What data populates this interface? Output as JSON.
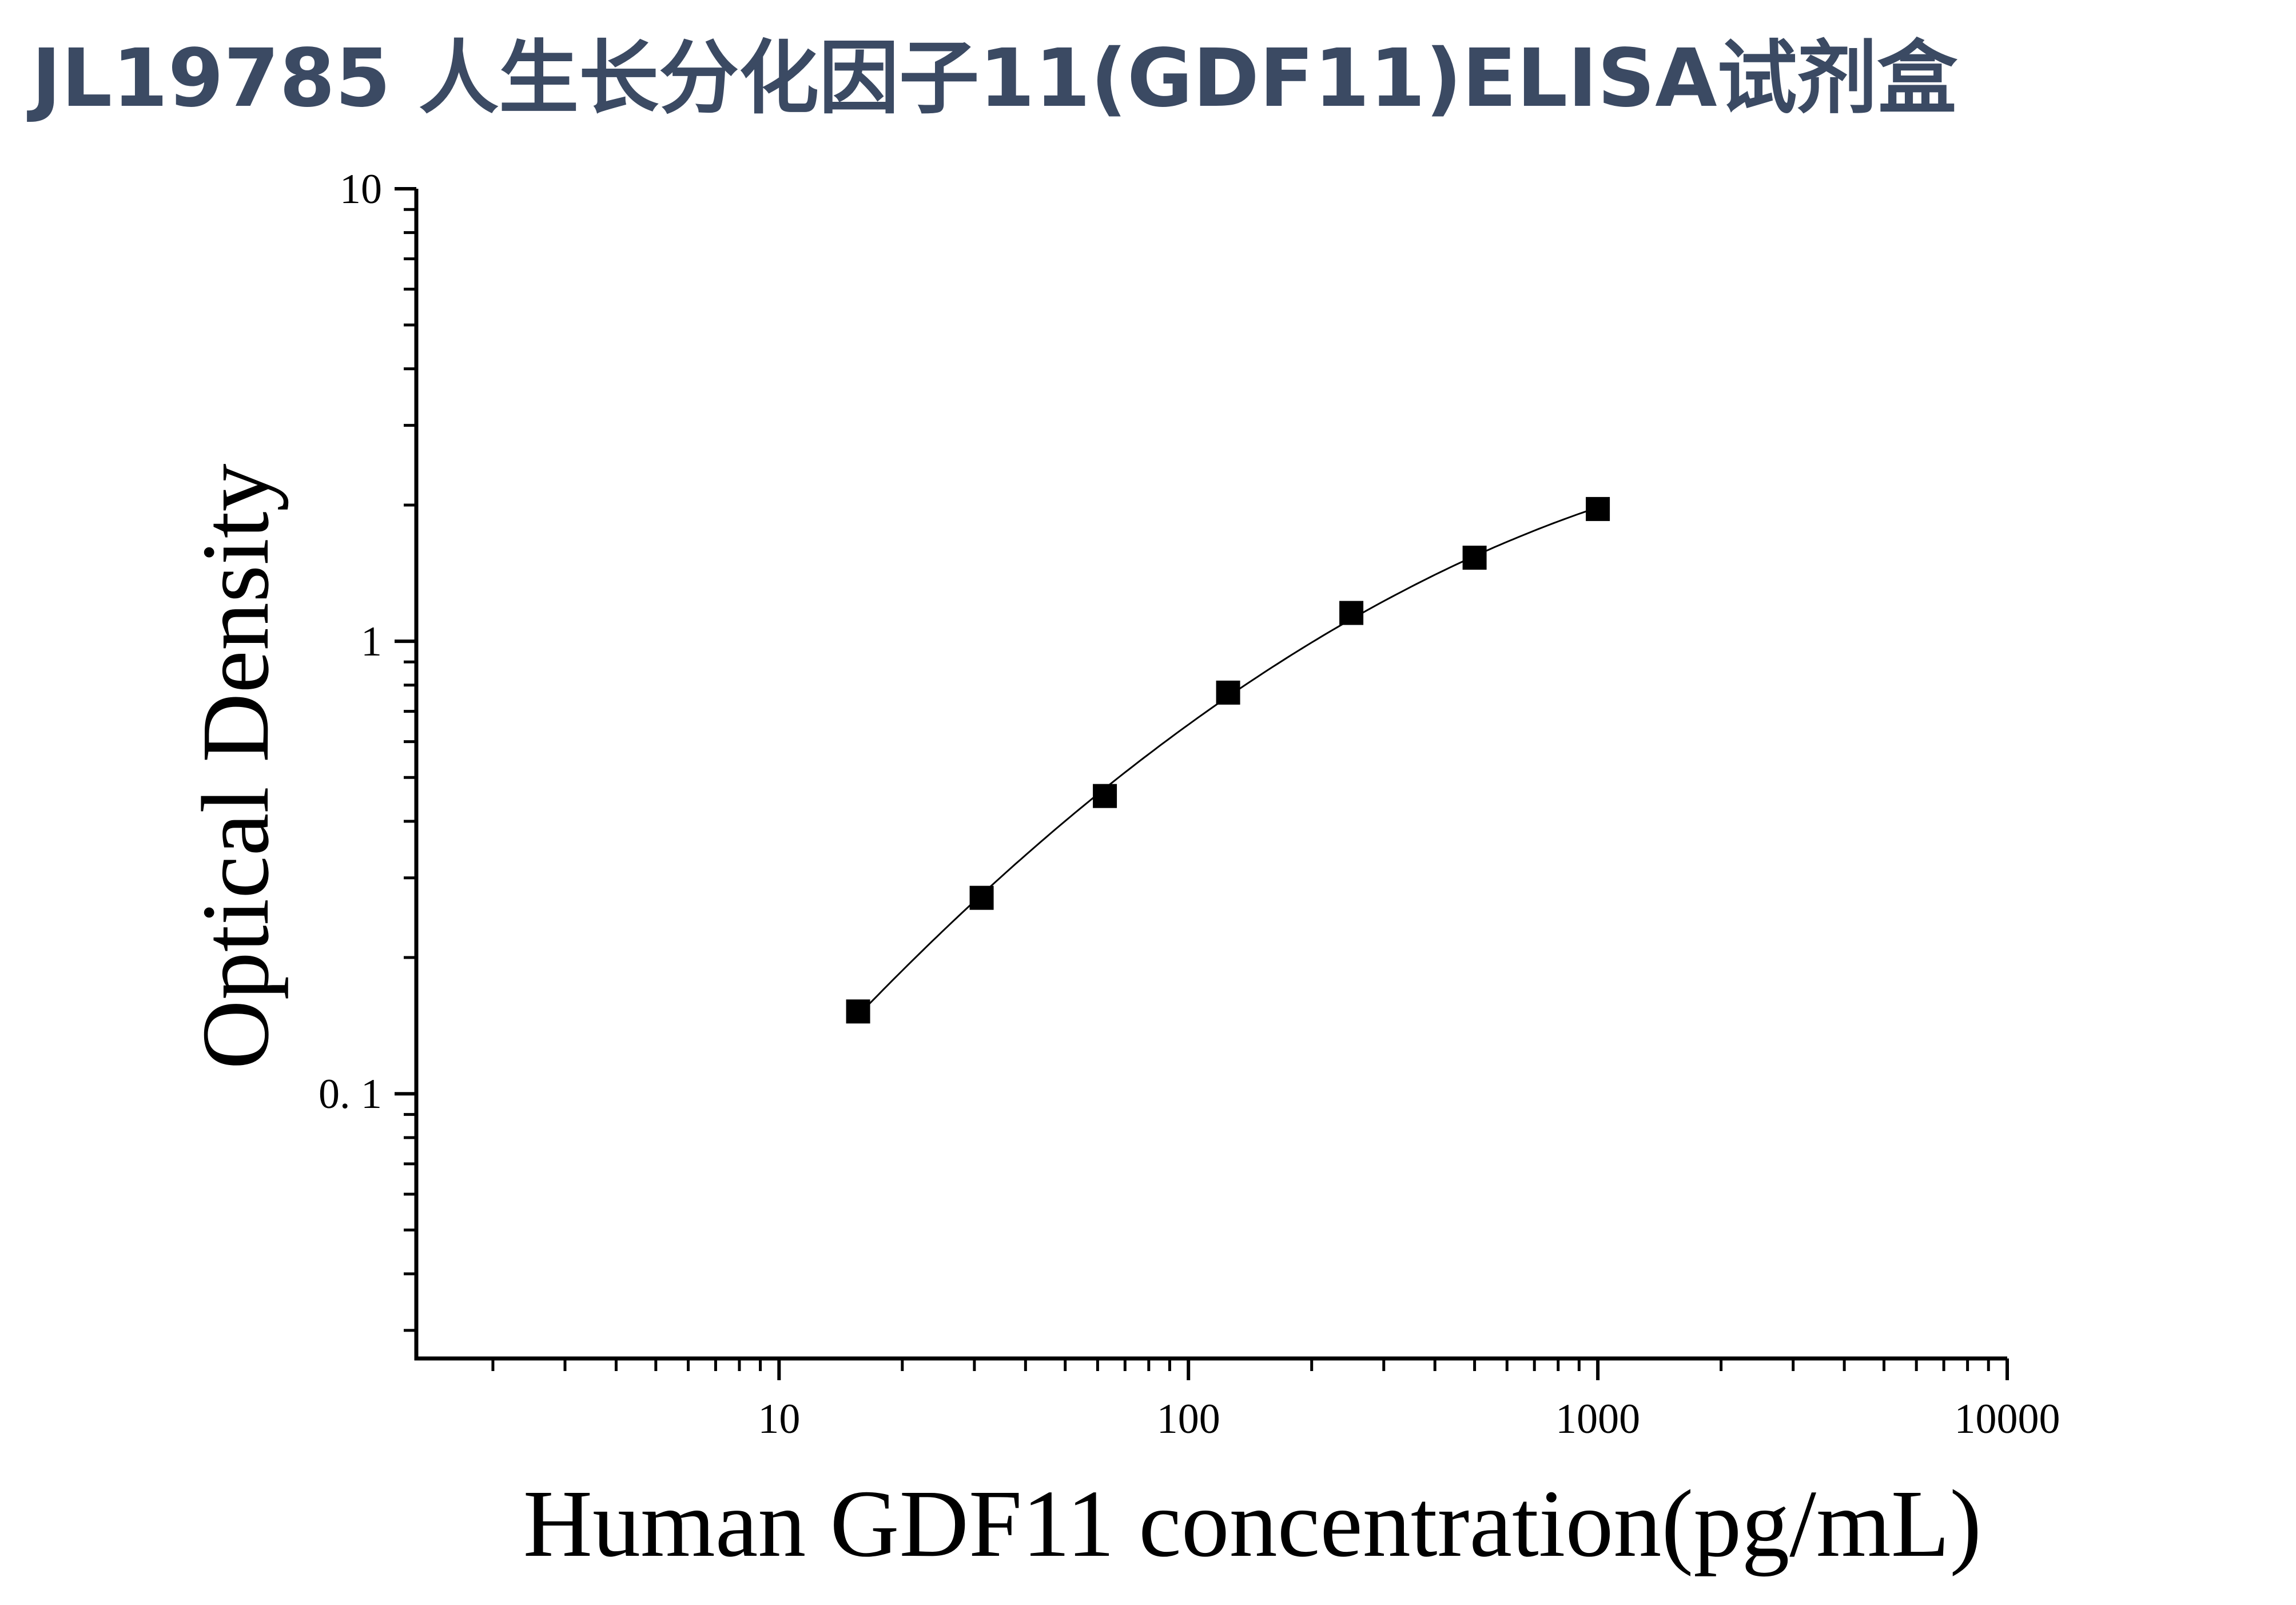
{
  "header": {
    "title": "JL19785 人生长分化因子11(GDF11)ELISA试剂盒"
  },
  "colors": {
    "title": "#3b4a63",
    "axis": "#000000",
    "curve": "#000000",
    "marker": "#000000"
  },
  "chart_data": {
    "type": "scatter",
    "title": "JL19785 人生长分化因子11(GDF11)ELISA试剂盒",
    "xlabel": "Human GDF11 concentration(pg/mL)",
    "ylabel": "Optical Density",
    "x_scale": "log",
    "y_scale": "log",
    "xlim": [
      1.3,
      10000
    ],
    "ylim": [
      0.026,
      10
    ],
    "x_ticks": [
      10,
      100,
      1000,
      10000
    ],
    "x_tick_labels": [
      "10",
      "100",
      "1000",
      "10000"
    ],
    "y_ticks": [
      10,
      1,
      0.1
    ],
    "y_tick_labels": [
      "10",
      "1",
      "0. 1"
    ],
    "grid": false,
    "legend": "none",
    "fit_curve": true,
    "marker": "square",
    "series": [
      {
        "x": [
          15.6,
          31.25,
          62.5,
          125,
          250,
          500,
          1000
        ],
        "y": [
          0.152,
          0.271,
          0.455,
          0.77,
          1.155,
          1.53,
          1.96
        ]
      }
    ]
  }
}
